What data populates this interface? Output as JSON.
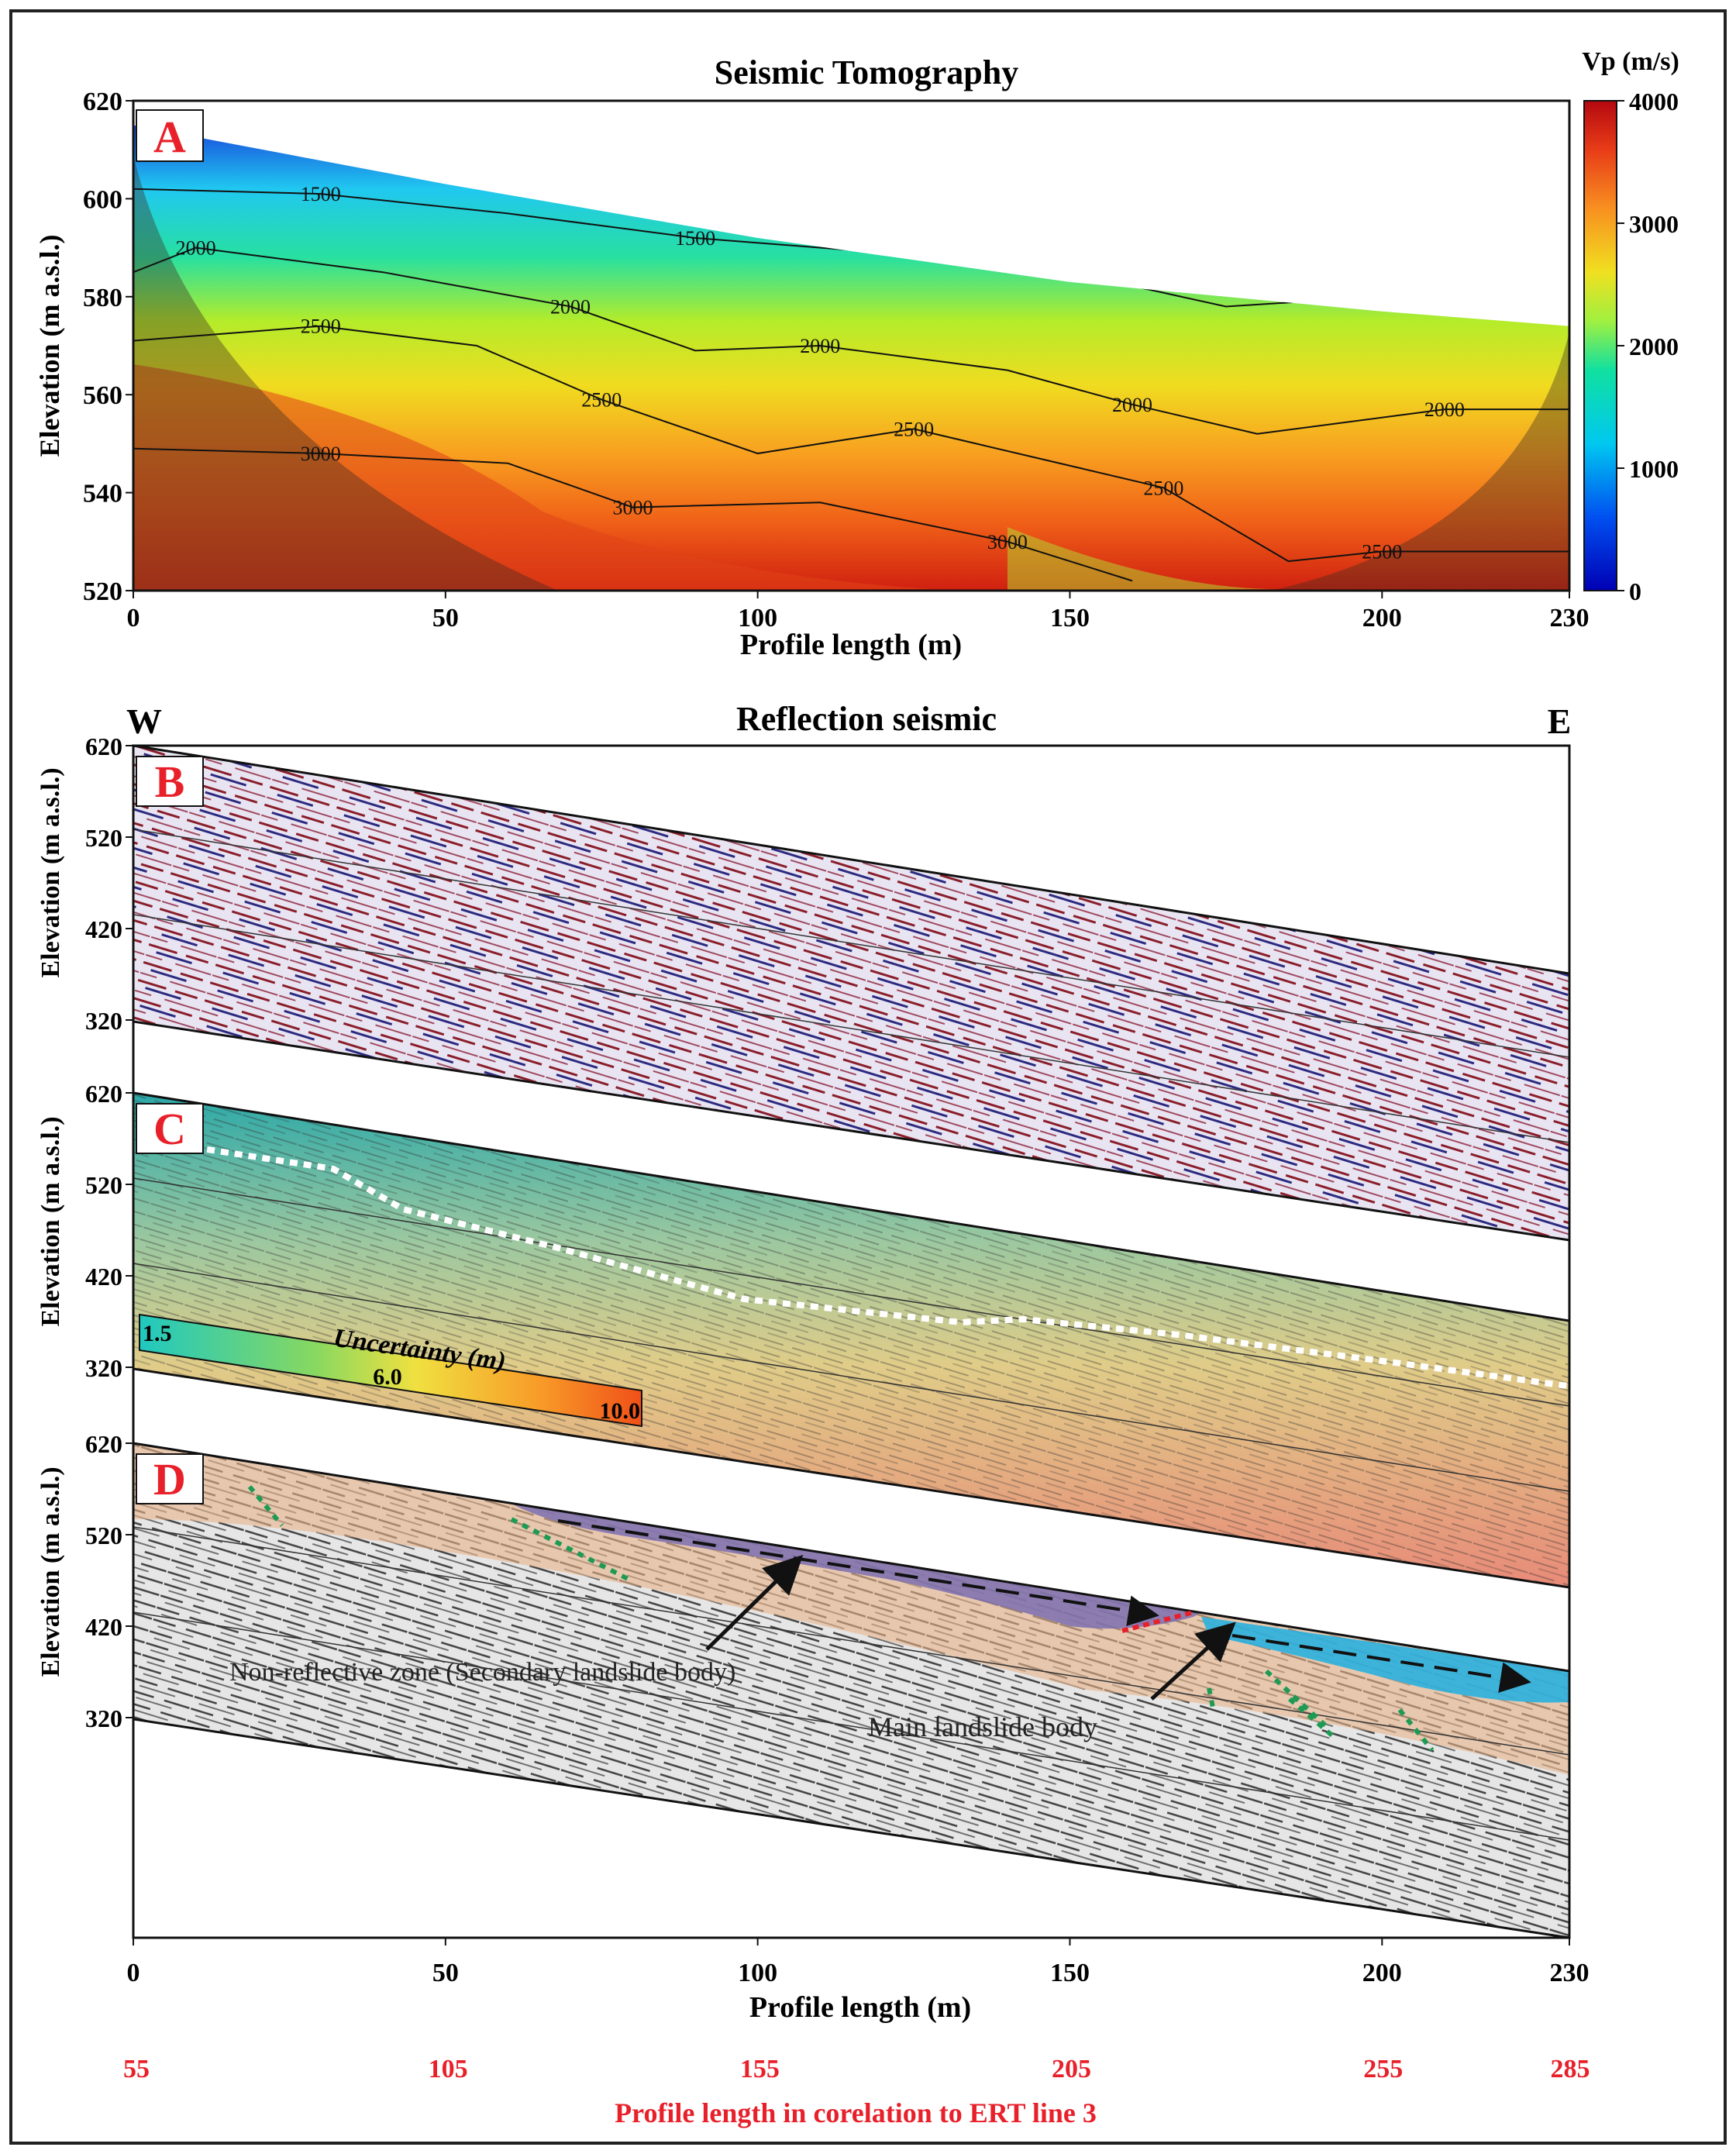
{
  "panel_labels": [
    "A",
    "B",
    "C",
    "D"
  ],
  "tomography": {
    "title": "Seismic Tomography",
    "ylabel": "Elevation (m a.s.l.)",
    "xlabel": "Profile length (m)",
    "colorbar_title": "Vp (m/s)",
    "colorbar_ticks": [
      "4000",
      "3000",
      "2000",
      "1000",
      "0"
    ],
    "xticks": [
      "0",
      "50",
      "100",
      "150",
      "200",
      "230"
    ],
    "yticks": [
      "620",
      "600",
      "580",
      "560",
      "540",
      "520"
    ],
    "contour_labels": {
      "c1500": "1500",
      "c2000": "2000",
      "c2500": "2500",
      "c3000": "3000"
    }
  },
  "reflection": {
    "title": "Reflection seismic",
    "west": "W",
    "east": "E",
    "ylabel": "Elevation (m a.s.l.)",
    "yticks": [
      "620",
      "520",
      "420",
      "320"
    ],
    "xlabel": "Profile length (m)",
    "xticks": [
      "0",
      "50",
      "100",
      "150",
      "200",
      "230"
    ],
    "ert_xticks": [
      "55",
      "105",
      "155",
      "205",
      "255",
      "285"
    ],
    "ert_label": "Profile length in corelation to ERT line 3",
    "uncertainty_title": "Uncertainty (m)",
    "uncertainty_ticks": [
      "1.5",
      "6.0",
      "10.0"
    ],
    "annotation_secondary": "Non-reflective zone (Secondary landslide body)",
    "annotation_main": "Main landslide body"
  },
  "colors": {
    "panel_label": "#e8202a",
    "ert_text": "#e8202a",
    "secondary_body": "#7b6fb0",
    "main_body": "#2bb0df",
    "fault_dots": "#1f9a55",
    "boundary_dots": "#ffffff"
  },
  "chart_data": [
    {
      "type": "heatmap",
      "title": "Seismic Tomography",
      "xlabel": "Profile length (m)",
      "ylabel": "Elevation (m a.s.l.)",
      "xlim": [
        0,
        230
      ],
      "ylim": [
        520,
        620
      ],
      "colorbar": {
        "label": "Vp (m/s)",
        "range": [
          0,
          4000
        ]
      },
      "surface_profile": {
        "x": [
          0,
          50,
          100,
          150,
          200,
          230
        ],
        "y": [
          615,
          603,
          592,
          583,
          577,
          574
        ]
      },
      "contours": [
        {
          "level": 1500,
          "x": [
            0,
            30,
            60,
            90,
            120,
            150,
            175,
            200,
            230
          ],
          "y": [
            602,
            601,
            597,
            592,
            589,
            585,
            578,
            580,
            578
          ]
        },
        {
          "level": 2000,
          "x": [
            0,
            10,
            40,
            70,
            90,
            110,
            140,
            160,
            180,
            210,
            230
          ],
          "y": [
            585,
            590,
            585,
            578,
            569,
            570,
            565,
            558,
            552,
            557,
            557
          ]
        },
        {
          "level": 2500,
          "x": [
            0,
            30,
            55,
            75,
            100,
            125,
            145,
            165,
            185,
            200,
            230
          ],
          "y": [
            571,
            574,
            570,
            559,
            548,
            553,
            547,
            541,
            526,
            528,
            528
          ]
        },
        {
          "level": 3000,
          "x": [
            0,
            30,
            60,
            80,
            110,
            140,
            160
          ],
          "y": [
            549,
            548,
            546,
            537,
            538,
            530,
            522
          ]
        }
      ]
    },
    {
      "type": "heatmap",
      "title": "Reflection seismic",
      "xlabel": "Profile length (m)",
      "ylabel": "Elevation (m a.s.l.)",
      "xlim": [
        0,
        230
      ],
      "ert_xticks": [
        55,
        105,
        155,
        205,
        255,
        285
      ],
      "panels": [
        "B",
        "C",
        "D"
      ],
      "uncertainty_range_m": [
        1.5,
        10.0
      ]
    }
  ]
}
